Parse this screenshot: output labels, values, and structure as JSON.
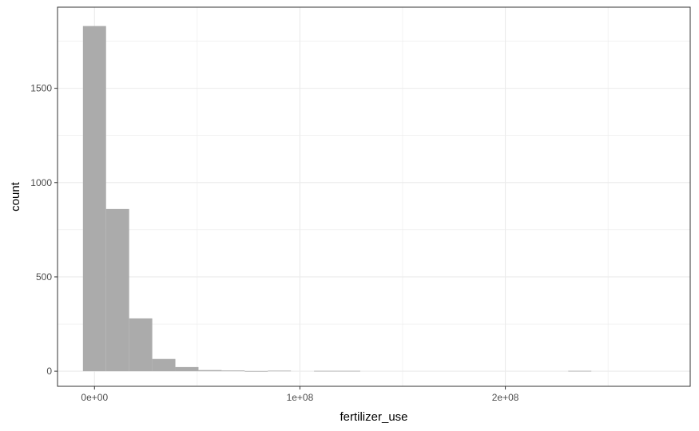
{
  "chart_data": {
    "type": "bar",
    "title": "",
    "xlabel": "fertilizer_use",
    "ylabel": "count",
    "xlim": [
      -18000000,
      290000000
    ],
    "ylim": [
      -80,
      1930
    ],
    "x_ticks": [
      {
        "value": 0,
        "label": "0e+00"
      },
      {
        "value": 100000000,
        "label": "1e+08"
      },
      {
        "value": 200000000,
        "label": "2e+08"
      }
    ],
    "y_ticks": [
      {
        "value": 0,
        "label": "0"
      },
      {
        "value": 500,
        "label": "500"
      },
      {
        "value": 1000,
        "label": "1000"
      },
      {
        "value": 1500,
        "label": "1500"
      }
    ],
    "bin_width": 11250000,
    "bins": [
      {
        "center": 0,
        "count": 1830
      },
      {
        "center": 11250000,
        "count": 860
      },
      {
        "center": 22500000,
        "count": 280
      },
      {
        "center": 33750000,
        "count": 65
      },
      {
        "center": 45000000,
        "count": 22
      },
      {
        "center": 56250000,
        "count": 6
      },
      {
        "center": 67500000,
        "count": 4
      },
      {
        "center": 78750000,
        "count": 1
      },
      {
        "center": 90000000,
        "count": 3
      },
      {
        "center": 101250000,
        "count": 0
      },
      {
        "center": 112500000,
        "count": 2
      },
      {
        "center": 123750000,
        "count": 2
      },
      {
        "center": 236250000,
        "count": 2
      }
    ],
    "bar_color": "#ababab",
    "grid": true,
    "grid_color": "#ebebeb",
    "panel_border_color": "#333333"
  }
}
